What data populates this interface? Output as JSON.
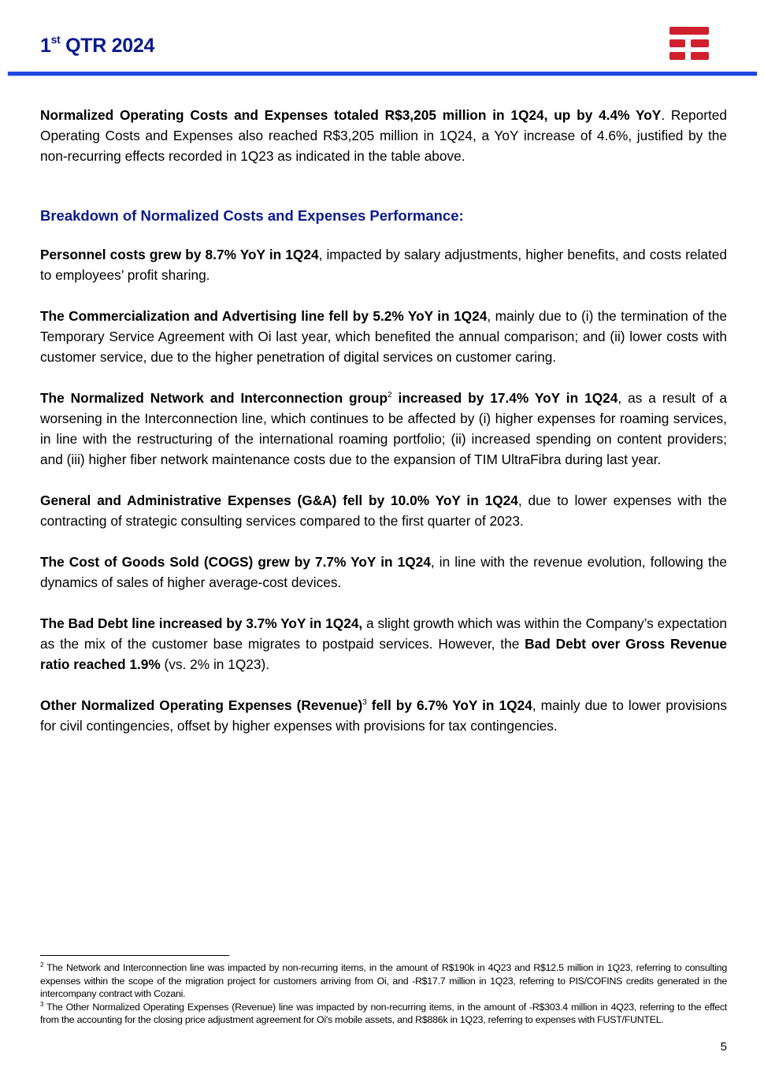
{
  "header": {
    "title_num": "1",
    "title_sup": "st",
    "title_rest": " QTR 2024",
    "logo_color": "#d0202e",
    "rule_color": "#1e46e0"
  },
  "intro": [
    {
      "t": "Normalized Operating Costs and Expenses totaled R$3,205 million in 1Q24, up by 4.4% YoY",
      "b": true
    },
    {
      "t": ". Reported Operating Costs and Expenses also reached R$3,205 million in 1Q24, a YoY increase of 4.6%, justified by the non-recurring effects recorded in 1Q23 as indicated in the table above.",
      "b": false
    }
  ],
  "section_heading": "Breakdown of Normalized Costs and Expenses Performance:",
  "paragraphs": [
    [
      {
        "t": "Personnel costs grew by 8.7% YoY in 1Q24",
        "b": true
      },
      {
        "t": ", impacted by salary adjustments, higher benefits, and costs related to employees’ profit sharing.",
        "b": false
      }
    ],
    [
      {
        "t": "The Commercialization and Advertising line fell by 5.2% YoY in 1Q24",
        "b": true
      },
      {
        "t": ", mainly due to (i) the termination of the Temporary Service Agreement with Oi last year, which benefited the annual comparison; and (ii) lower costs with customer service, due to the higher penetration of digital services on customer caring.",
        "b": false
      }
    ],
    [
      {
        "t": "The Normalized Network and Interconnection group",
        "b": true
      },
      {
        "t": "2",
        "b": true,
        "sup": true
      },
      {
        "t": " increased by 17.4% YoY in 1Q24",
        "b": true
      },
      {
        "t": ", as a result of a worsening in the Interconnection line, which continues to be affected by (i) higher expenses for roaming services, in line with the restructuring of the international roaming portfolio; (ii) increased spending on content providers; and (iii) higher fiber network maintenance costs due to the expansion of TIM UltraFibra during last year.",
        "b": false
      }
    ],
    [
      {
        "t": "General and Administrative Expenses (G&A) fell by 10.0% YoY in 1Q24",
        "b": true
      },
      {
        "t": ", due to lower expenses with the contracting of strategic consulting services compared to the first quarter of 2023.",
        "b": false
      }
    ],
    [
      {
        "t": "The Cost of Goods Sold (COGS) grew by 7.7% YoY in 1Q24",
        "b": true
      },
      {
        "t": ", in line with the revenue evolution, following the dynamics of sales of higher average-cost devices.",
        "b": false
      }
    ],
    [
      {
        "t": "The Bad Debt line increased by 3.7% YoY in 1Q24,",
        "b": true
      },
      {
        "t": " a slight growth which was within the Company’s expectation as the mix of the customer base migrates to postpaid services. However, the ",
        "b": false
      },
      {
        "t": "Bad Debt over Gross Revenue ratio reached 1.9%",
        "b": true
      },
      {
        "t": " (vs. 2% in 1Q23).",
        "b": false
      }
    ],
    [
      {
        "t": "Other Normalized Operating Expenses (Revenue)",
        "b": true
      },
      {
        "t": "3",
        "b": true,
        "sup": true
      },
      {
        "t": " fell by 6.7% YoY in 1Q24",
        "b": true
      },
      {
        "t": ", mainly due to lower provisions for civil contingencies, offset by higher expenses with provisions for tax contingencies.",
        "b": false
      }
    ]
  ],
  "footnotes": [
    {
      "num": "2",
      "text": " The Network and Interconnection line was impacted by non-recurring items, in the amount of R$190k in 4Q23 and R$12.5 million in 1Q23, referring to consulting expenses within the scope of the migration project for customers arriving from Oi, and -R$17.7 million in 1Q23, referring to PIS/COFINS credits generated in the intercompany contract with Cozani."
    },
    {
      "num": "3",
      "text": " The Other Normalized Operating Expenses (Revenue) line was impacted by non-recurring items, in the amount of -R$303.4 million in 4Q23, referring to the effect from the accounting for the closing price adjustment agreement for Oi's mobile assets, and R$886k in 1Q23, referring to expenses with FUST/FUNTEL."
    }
  ],
  "page_number": "5"
}
